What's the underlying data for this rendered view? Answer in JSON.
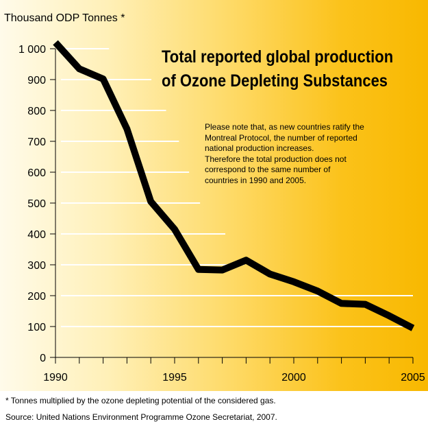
{
  "chart_data": {
    "type": "line",
    "title": "Total reported global production of Ozone Depleting Substances",
    "title_lines": [
      "Total reported global production",
      "of Ozone Depleting Substances"
    ],
    "ylabel": "Thousand ODP Tonnes *",
    "xlabel": "",
    "x": [
      1990,
      1991,
      1992,
      1993,
      1994,
      1995,
      1996,
      1997,
      1998,
      1999,
      2000,
      2001,
      2002,
      2003,
      2004,
      2005
    ],
    "series": [
      {
        "values": [
          1020,
          935,
          902,
          740,
          505,
          415,
          285,
          283,
          315,
          270,
          245,
          215,
          175,
          172,
          135,
          95
        ]
      }
    ],
    "xlim": [
      1990,
      2005
    ],
    "ylim": [
      0,
      1050
    ],
    "x_tick_labels": [
      "1990",
      "1995",
      "2000",
      "2005"
    ],
    "y_tick_labels": [
      "0",
      "100",
      "200",
      "300",
      "400",
      "500",
      "600",
      "700",
      "800",
      "900",
      "1 000"
    ],
    "grid": true,
    "note_lines": [
      "Please note that, as new countries ratify the",
      "Montreal Protocol, the number of reported",
      "national production increases.",
      "Therefore the total production does not",
      "correspond to the same number of",
      "countries in 1990 and 2005."
    ]
  },
  "footnote": "* Tonnes multiplied by the ozone depleting potential of the considered gas.",
  "source": "Source: United Nations Environment Programme Ozone Secretariat, 2007."
}
